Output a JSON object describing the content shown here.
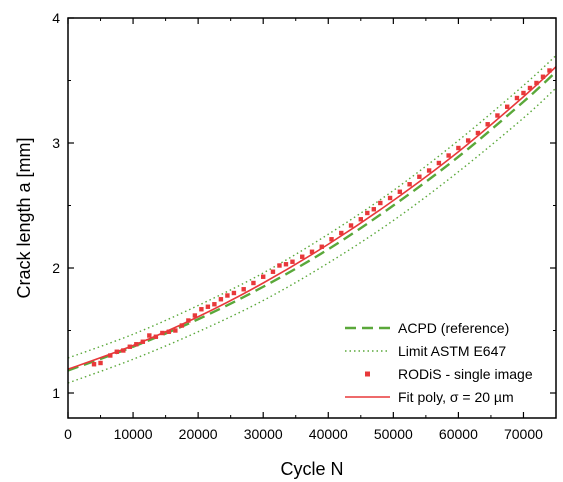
{
  "chart_data": {
    "type": "scatter",
    "xlabel": "Cycle N",
    "ylabel": "Crack length a [mm]",
    "xlim": [
      0,
      75000
    ],
    "ylim": [
      0.8,
      4.0
    ],
    "x_ticks": [
      "0",
      "10000",
      "20000",
      "30000",
      "40000",
      "50000",
      "60000",
      "70000"
    ],
    "y_ticks": [
      "1",
      "2",
      "3",
      "4"
    ],
    "legend_position": "bottom-right",
    "grid": false,
    "series": [
      {
        "name": "ACPD (reference)",
        "style": "dashed-line",
        "color": "#5aa83a",
        "x": [
          0,
          10000,
          20000,
          30000,
          40000,
          50000,
          60000,
          70000,
          75000
        ],
        "y": [
          1.18,
          1.37,
          1.59,
          1.85,
          2.15,
          2.5,
          2.89,
          3.33,
          3.57
        ]
      },
      {
        "name": "Limit ASTM E647",
        "style": "dotted-line",
        "color": "#5aa83a",
        "x": [
          0,
          10000,
          20000,
          30000,
          40000,
          50000,
          60000,
          70000,
          75000
        ],
        "y": [
          1.28,
          1.47,
          1.7,
          1.96,
          2.27,
          2.62,
          3.02,
          3.46,
          3.7
        ]
      },
      {
        "name": "",
        "style": "dotted-line",
        "color": "#5aa83a",
        "x": [
          0,
          10000,
          20000,
          30000,
          40000,
          50000,
          60000,
          70000,
          75000
        ],
        "y": [
          1.08,
          1.27,
          1.49,
          1.74,
          2.04,
          2.38,
          2.77,
          3.2,
          3.44
        ]
      },
      {
        "name": "RODiS - single image",
        "style": "markers",
        "color": "#e8383a",
        "x": [
          4000,
          5000,
          6500,
          7500,
          8500,
          9500,
          10500,
          11500,
          12500,
          13500,
          14500,
          15500,
          16500,
          17500,
          18500,
          19500,
          20500,
          21500,
          22500,
          23500,
          24500,
          25500,
          27000,
          28500,
          30000,
          31500,
          32500,
          33500,
          34500,
          36000,
          37500,
          39000,
          40500,
          42000,
          43500,
          45000,
          46000,
          47000,
          48000,
          49500,
          51000,
          52500,
          54000,
          55500,
          57000,
          58500,
          60000,
          61500,
          63000,
          64500,
          66000,
          67500,
          69000,
          70000,
          71000,
          72000,
          73000,
          74000
        ],
        "y": [
          1.23,
          1.24,
          1.3,
          1.33,
          1.34,
          1.37,
          1.39,
          1.41,
          1.46,
          1.45,
          1.48,
          1.49,
          1.5,
          1.54,
          1.58,
          1.62,
          1.67,
          1.69,
          1.71,
          1.75,
          1.78,
          1.8,
          1.83,
          1.88,
          1.93,
          1.97,
          2.02,
          2.03,
          2.05,
          2.09,
          2.13,
          2.17,
          2.23,
          2.28,
          2.34,
          2.39,
          2.44,
          2.47,
          2.52,
          2.56,
          2.61,
          2.67,
          2.73,
          2.78,
          2.84,
          2.9,
          2.96,
          3.02,
          3.08,
          3.15,
          3.22,
          3.29,
          3.36,
          3.4,
          3.44,
          3.48,
          3.53,
          3.58
        ]
      },
      {
        "name": "Fit poly, σ = 20 µm",
        "style": "solid-line",
        "color": "#e8383a",
        "x": [
          0,
          10000,
          20000,
          30000,
          40000,
          50000,
          60000,
          70000,
          75000
        ],
        "y": [
          1.19,
          1.38,
          1.61,
          1.88,
          2.19,
          2.54,
          2.93,
          3.37,
          3.61
        ]
      }
    ]
  }
}
